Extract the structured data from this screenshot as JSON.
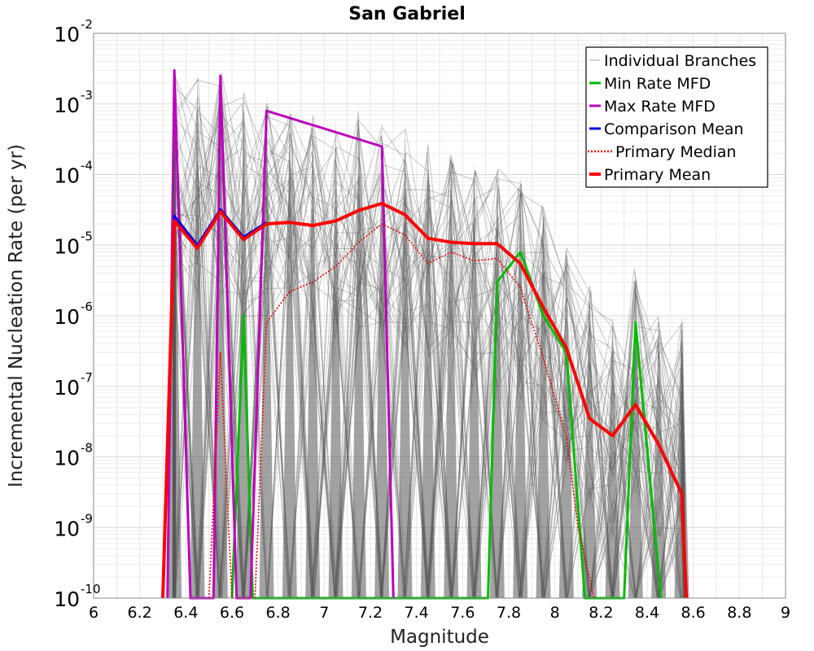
{
  "chart_data": {
    "type": "line",
    "title": "San Gabriel",
    "xlabel": "Magnitude",
    "ylabel": "Incremental Nucleation Rate (per yr)",
    "x_scale": "linear",
    "y_scale": "log",
    "xlim": [
      6,
      9
    ],
    "ylim": [
      1e-10,
      0.01
    ],
    "grid": true,
    "legend_position": "top-right",
    "x_ticks": [
      "6",
      "6.2",
      "6.4",
      "6.6",
      "6.8",
      "7",
      "7.2",
      "7.4",
      "7.6",
      "7.8",
      "8",
      "8.2",
      "8.4",
      "8.6",
      "8.8",
      "9"
    ],
    "y_ticks": [
      {
        "base": "10",
        "exp": "-10",
        "value": 1e-10
      },
      {
        "base": "10",
        "exp": "-9",
        "value": 1e-09
      },
      {
        "base": "10",
        "exp": "-8",
        "value": 1e-08
      },
      {
        "base": "10",
        "exp": "-7",
        "value": 1e-07
      },
      {
        "base": "10",
        "exp": "-6",
        "value": 1e-06
      },
      {
        "base": "10",
        "exp": "-5",
        "value": 1e-05
      },
      {
        "base": "10",
        "exp": "-4",
        "value": 0.0001
      },
      {
        "base": "10",
        "exp": "-3",
        "value": 0.001
      },
      {
        "base": "10",
        "exp": "-2",
        "value": 0.01
      }
    ],
    "series": [
      {
        "name": "Individual Branches",
        "color": "#555555",
        "style": "thin-many",
        "branch_count": 60,
        "magnitudes": [
          6.35,
          6.45,
          6.55,
          6.65,
          6.75,
          6.85,
          6.95,
          7.05,
          7.15,
          7.25,
          7.35,
          7.45,
          7.55,
          7.65,
          7.75,
          7.85,
          7.95,
          8.05,
          8.15,
          8.25,
          8.35,
          8.45,
          8.55
        ],
        "peak_rates": [
          0.003,
          0.003,
          0.003,
          0.0015,
          0.0012,
          0.0009,
          0.0007,
          0.0006,
          0.0008,
          0.0006,
          0.0005,
          0.0003,
          0.0002,
          0.00015,
          0.00012,
          0.0001,
          4e-05,
          1e-05,
          3e-06,
          1e-06,
          5e-06,
          1e-06,
          1e-06
        ]
      },
      {
        "name": "Min Rate MFD",
        "color": "#00bb00",
        "style": "solid",
        "x": [
          6.6,
          6.65,
          6.69,
          7.71,
          7.75,
          7.85,
          7.95,
          8.05,
          8.13,
          8.3,
          8.35,
          8.46
        ],
        "y": [
          1e-10,
          1e-06,
          1e-10,
          1e-10,
          3e-06,
          8e-06,
          1e-06,
          3e-07,
          1e-10,
          1e-10,
          8e-07,
          1e-10
        ]
      },
      {
        "name": "Max Rate MFD",
        "color": "#bb00bb",
        "style": "solid",
        "x": [
          6.32,
          6.35,
          6.42,
          6.52,
          6.55,
          6.62,
          6.68,
          6.75,
          7.25,
          7.3
        ],
        "y": [
          1e-10,
          0.003,
          1e-10,
          1e-10,
          0.0025,
          1e-10,
          1e-10,
          0.0008,
          0.00025,
          1e-10
        ]
      },
      {
        "name": "Comparison Mean",
        "color": "#0000dd",
        "style": "solid",
        "x": [
          6.3,
          6.35,
          6.45,
          6.55,
          6.65,
          6.75
        ],
        "y": [
          1e-10,
          2.6e-05,
          1e-05,
          3.2e-05,
          1.3e-05,
          2.1e-05
        ]
      },
      {
        "name": "Primary Median",
        "color": "#ee0000",
        "style": "dotted",
        "x": [
          6.5,
          6.55,
          6.6,
          6.7,
          6.75,
          6.85,
          6.95,
          7.05,
          7.15,
          7.25,
          7.35,
          7.45,
          7.55,
          7.65,
          7.75,
          7.85,
          7.95,
          8.05,
          8.1,
          8.17
        ],
        "y": [
          1e-10,
          3e-07,
          1e-10,
          1e-10,
          8e-07,
          2.2e-06,
          3e-06,
          5e-06,
          1.1e-05,
          2e-05,
          1.4e-05,
          5.5e-06,
          8e-06,
          6e-06,
          6.5e-06,
          2.5e-06,
          2.5e-07,
          2e-08,
          1e-09,
          1e-10
        ]
      },
      {
        "name": "Primary Mean",
        "color": "#ff0000",
        "style": "thick",
        "x": [
          6.3,
          6.35,
          6.45,
          6.55,
          6.65,
          6.75,
          6.85,
          6.95,
          7.05,
          7.15,
          7.25,
          7.35,
          7.45,
          7.55,
          7.65,
          7.75,
          7.85,
          7.95,
          8.05,
          8.15,
          8.25,
          8.35,
          8.45,
          8.55,
          8.57
        ],
        "y": [
          1e-10,
          2.2e-05,
          9e-06,
          3e-05,
          1.2e-05,
          2e-05,
          2.1e-05,
          1.9e-05,
          2.2e-05,
          3.1e-05,
          3.9e-05,
          2.7e-05,
          1.25e-05,
          1.1e-05,
          1.05e-05,
          1.05e-05,
          5.5e-06,
          1.3e-06,
          3.5e-07,
          3.5e-08,
          2e-08,
          5.5e-08,
          1.5e-08,
          3e-09,
          1e-10
        ]
      }
    ],
    "legend": [
      {
        "label": "Individual Branches",
        "color": "#aaaaaa",
        "style": "thin"
      },
      {
        "label": "Min Rate MFD",
        "color": "#00bb00",
        "style": "solid"
      },
      {
        "label": "Max Rate MFD",
        "color": "#bb00bb",
        "style": "solid"
      },
      {
        "label": "Comparison Mean",
        "color": "#0000dd",
        "style": "solid"
      },
      {
        "label": "Primary Median",
        "color": "#ee0000",
        "style": "dotted"
      },
      {
        "label": "Primary Mean",
        "color": "#ff0000",
        "style": "thick"
      }
    ]
  }
}
